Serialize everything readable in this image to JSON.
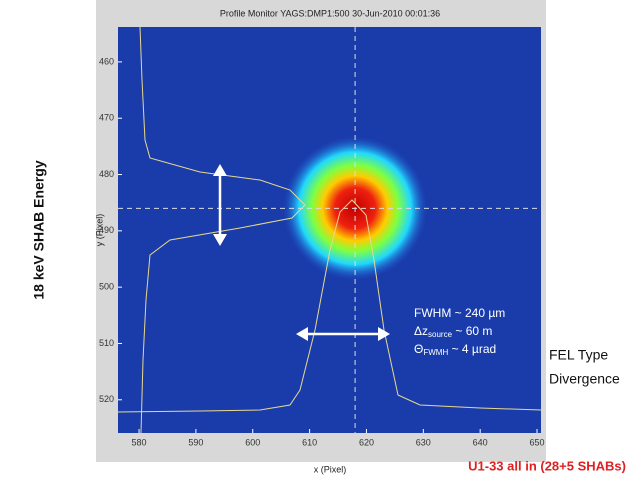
{
  "chart_data": {
    "type": "image",
    "title": "Profile Monitor YAGS:DMP1:500 30-Jun-2010 00:01:36",
    "xlabel": "x (Pixel)",
    "ylabel": "y (Pixel)",
    "xlim": [
      576.3,
      650.7
    ],
    "ylim": [
      525.9,
      453.8
    ],
    "xticks": [
      580,
      590,
      600,
      610,
      620,
      630,
      640,
      650
    ],
    "yticks": [
      460,
      470,
      480,
      490,
      500,
      510,
      520
    ],
    "crosshair": {
      "x": 618,
      "y": 486
    },
    "left_label": "18 keV SHAB Energy",
    "right_label": [
      "FEL Type",
      "Divergence"
    ],
    "footer": "U1-33 all in (28+5 SHABs)",
    "annotations": [
      {
        "text": "FWHM ~ 240 µm"
      },
      {
        "text": "Δz",
        "sub": "source",
        "rest": " ~ 60 m"
      },
      {
        "text": "Θ",
        "sub": "FWMH",
        "rest": " ~ 4 µrad"
      }
    ]
  }
}
